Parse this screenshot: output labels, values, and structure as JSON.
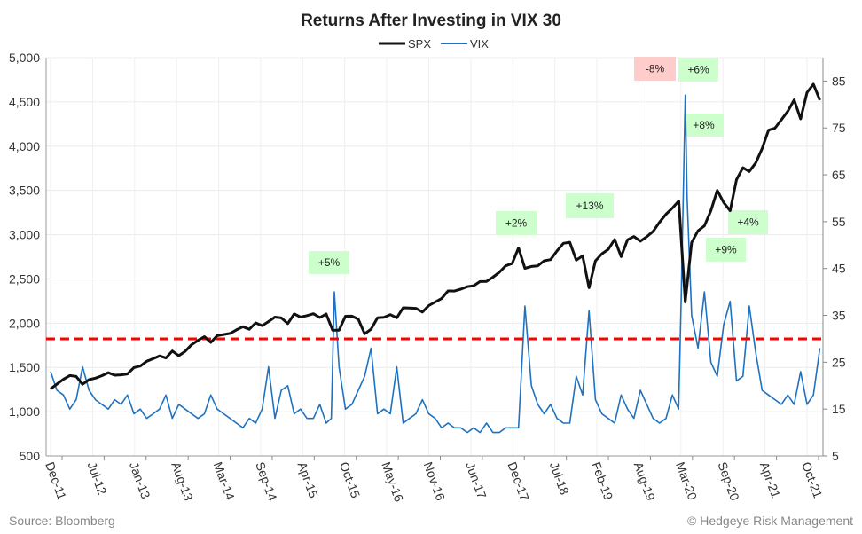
{
  "chart_data": {
    "type": "line",
    "title": "Returns After Investing in VIX 30",
    "legend_position": "top",
    "grid": true,
    "left_axis": {
      "min": 500,
      "max": 5000,
      "ticks": [
        "500",
        "1,000",
        "1,500",
        "2,000",
        "2,500",
        "3,000",
        "3,500",
        "4,000",
        "4,500",
        "5,000"
      ],
      "tick_values": [
        500,
        1000,
        1500,
        2000,
        2500,
        3000,
        3500,
        4000,
        4500,
        5000
      ]
    },
    "right_axis": {
      "min": 5,
      "max": 90,
      "ticks": [
        "5",
        "15",
        "25",
        "35",
        "45",
        "55",
        "65",
        "75",
        "85"
      ],
      "tick_values": [
        5,
        15,
        25,
        35,
        45,
        55,
        65,
        75,
        85
      ]
    },
    "x_ticks": [
      "Dec-11",
      "Jul-12",
      "Jan-13",
      "Aug-13",
      "Mar-14",
      "Sep-14",
      "Apr-15",
      "Oct-15",
      "May-16",
      "Nov-16",
      "Jun-17",
      "Dec-17",
      "Jul-18",
      "Feb-19",
      "Aug-19",
      "Mar-20",
      "Sep-20",
      "Apr-21",
      "Oct-21"
    ],
    "threshold": {
      "value": 30,
      "axis": "right",
      "color": "#ff0000",
      "style": "dashed"
    },
    "series": [
      {
        "name": "SPX",
        "axis": "left",
        "color": "#111111",
        "x": [
          "2011-12",
          "2012-01",
          "2012-02",
          "2012-03",
          "2012-04",
          "2012-05",
          "2012-06",
          "2012-07",
          "2012-08",
          "2012-09",
          "2012-10",
          "2012-11",
          "2012-12",
          "2013-01",
          "2013-02",
          "2013-03",
          "2013-04",
          "2013-05",
          "2013-06",
          "2013-07",
          "2013-08",
          "2013-09",
          "2013-10",
          "2013-11",
          "2013-12",
          "2014-01",
          "2014-02",
          "2014-03",
          "2014-04",
          "2014-05",
          "2014-06",
          "2014-07",
          "2014-08",
          "2014-09",
          "2014-10",
          "2014-11",
          "2014-12",
          "2015-01",
          "2015-02",
          "2015-03",
          "2015-04",
          "2015-05",
          "2015-06",
          "2015-07",
          "2015-08",
          "2015-09",
          "2015-10",
          "2015-11",
          "2015-12",
          "2016-01",
          "2016-02",
          "2016-03",
          "2016-04",
          "2016-05",
          "2016-06",
          "2016-07",
          "2016-08",
          "2016-09",
          "2016-10",
          "2016-11",
          "2016-12",
          "2017-01",
          "2017-02",
          "2017-03",
          "2017-04",
          "2017-05",
          "2017-06",
          "2017-07",
          "2017-08",
          "2017-09",
          "2017-10",
          "2017-11",
          "2017-12",
          "2018-01",
          "2018-02",
          "2018-03",
          "2018-04",
          "2018-05",
          "2018-06",
          "2018-07",
          "2018-08",
          "2018-09",
          "2018-10",
          "2018-11",
          "2018-12",
          "2019-01",
          "2019-02",
          "2019-03",
          "2019-04",
          "2019-05",
          "2019-06",
          "2019-07",
          "2019-08",
          "2019-09",
          "2019-10",
          "2019-11",
          "2019-12",
          "2020-01",
          "2020-02",
          "2020-03",
          "2020-04",
          "2020-05",
          "2020-06",
          "2020-07",
          "2020-08",
          "2020-09",
          "2020-10",
          "2020-11",
          "2020-12",
          "2021-01",
          "2021-02",
          "2021-03",
          "2021-04",
          "2021-05",
          "2021-06",
          "2021-07",
          "2021-08",
          "2021-09",
          "2021-10",
          "2021-11",
          "2021-12"
        ],
        "y": [
          1258,
          1312,
          1366,
          1408,
          1398,
          1310,
          1362,
          1379,
          1406,
          1441,
          1412,
          1416,
          1426,
          1498,
          1515,
          1569,
          1598,
          1631,
          1606,
          1686,
          1633,
          1682,
          1757,
          1806,
          1848,
          1783,
          1859,
          1872,
          1884,
          1924,
          1960,
          1931,
          2003,
          1972,
          2018,
          2068,
          2059,
          1995,
          2105,
          2068,
          2086,
          2107,
          2063,
          2104,
          1920,
          1920,
          2079,
          2080,
          2044,
          1880,
          1932,
          2060,
          2065,
          2097,
          2060,
          2174,
          2171,
          2168,
          2126,
          2199,
          2239,
          2279,
          2364,
          2363,
          2384,
          2412,
          2423,
          2470,
          2472,
          2519,
          2575,
          2648,
          2674,
          2850,
          2620,
          2641,
          2648,
          2705,
          2718,
          2816,
          2902,
          2914,
          2712,
          2760,
          2400,
          2704,
          2784,
          2834,
          2946,
          2752,
          2942,
          2980,
          2926,
          2977,
          3038,
          3141,
          3231,
          3300,
          3380,
          2240,
          2912,
          3044,
          3100,
          3271,
          3500,
          3363,
          3270,
          3622,
          3756,
          3714,
          3811,
          3973,
          4181,
          4204,
          4298,
          4395,
          4523,
          4308,
          4605,
          4700,
          4520
        ]
      },
      {
        "name": "VIX",
        "axis": "right",
        "color": "#1f72c0",
        "x": [
          "2011-12",
          "2012-01",
          "2012-02",
          "2012-03",
          "2012-04",
          "2012-05",
          "2012-06",
          "2012-07",
          "2012-08",
          "2012-09",
          "2012-10",
          "2012-11",
          "2012-12",
          "2013-01",
          "2013-02",
          "2013-03",
          "2013-04",
          "2013-05",
          "2013-06",
          "2013-07",
          "2013-08",
          "2013-09",
          "2013-10",
          "2013-11",
          "2013-12",
          "2014-01",
          "2014-02",
          "2014-03",
          "2014-04",
          "2014-05",
          "2014-06",
          "2014-07",
          "2014-08",
          "2014-09",
          "2014-10",
          "2014-11",
          "2014-12",
          "2015-01",
          "2015-02",
          "2015-03",
          "2015-04",
          "2015-05",
          "2015-06",
          "2015-07",
          "2015-08-10",
          "2015-08-24",
          "2015-09",
          "2015-10",
          "2015-11",
          "2015-12",
          "2016-01",
          "2016-02",
          "2016-03",
          "2016-04",
          "2016-05",
          "2016-06",
          "2016-07",
          "2016-08",
          "2016-09",
          "2016-10",
          "2016-11",
          "2016-12",
          "2017-01",
          "2017-02",
          "2017-03",
          "2017-04",
          "2017-05",
          "2017-06",
          "2017-07",
          "2017-08",
          "2017-09",
          "2017-10",
          "2017-11",
          "2017-12",
          "2018-01",
          "2018-02",
          "2018-03",
          "2018-04",
          "2018-05",
          "2018-06",
          "2018-07",
          "2018-08",
          "2018-09",
          "2018-10",
          "2018-11",
          "2018-12",
          "2019-01",
          "2019-02",
          "2019-03",
          "2019-04",
          "2019-05",
          "2019-06",
          "2019-07",
          "2019-08",
          "2019-09",
          "2019-10",
          "2019-11",
          "2019-12",
          "2020-01",
          "2020-02-15",
          "2020-02-28",
          "2020-03-16",
          "2020-03-25",
          "2020-04",
          "2020-05",
          "2020-06",
          "2020-07",
          "2020-08",
          "2020-09",
          "2020-10",
          "2020-11",
          "2020-12",
          "2021-01",
          "2021-02",
          "2021-03",
          "2021-04",
          "2021-05",
          "2021-06",
          "2021-07",
          "2021-08",
          "2021-09",
          "2021-10",
          "2021-11",
          "2021-12"
        ],
        "y": [
          23,
          19,
          18,
          15,
          17,
          24,
          19,
          17,
          16,
          15,
          17,
          16,
          18,
          14,
          15,
          13,
          14,
          15,
          18,
          13,
          16,
          15,
          14,
          13,
          14,
          18,
          15,
          14,
          13,
          12,
          11,
          13,
          12,
          15,
          24,
          13,
          19,
          20,
          14,
          15,
          13,
          13,
          16,
          12,
          13,
          40,
          24,
          15,
          16,
          19,
          22,
          28,
          14,
          15,
          14,
          24,
          12,
          13,
          14,
          17,
          14,
          13,
          11,
          12,
          11,
          11,
          10,
          11,
          10,
          12,
          10,
          10,
          11,
          11,
          11,
          37,
          20,
          16,
          14,
          16,
          13,
          12,
          12,
          22,
          18,
          36,
          17,
          14,
          13,
          12,
          18,
          15,
          13,
          19,
          16,
          13,
          12,
          13,
          18,
          15,
          40,
          82,
          60,
          35,
          28,
          40,
          25,
          22,
          33,
          38,
          21,
          22,
          37,
          27,
          19,
          18,
          17,
          16,
          18,
          16,
          23,
          16,
          18,
          28
        ]
      }
    ],
    "annotations": [
      {
        "label": "+5%",
        "color": "#ccffcc"
      },
      {
        "label": "+2%",
        "color": "#ccffcc"
      },
      {
        "label": "+13%",
        "color": "#ccffcc"
      },
      {
        "label": "-8%",
        "color": "#ffcccc"
      },
      {
        "label": "+6%",
        "color": "#ccffcc"
      },
      {
        "label": "+8%",
        "color": "#ccffcc"
      },
      {
        "label": "+4%",
        "color": "#ccffcc"
      },
      {
        "label": "+9%",
        "color": "#ccffcc"
      }
    ]
  },
  "footer": {
    "source": "Source: Bloomberg",
    "credit": "© Hedgeye Risk Management"
  }
}
